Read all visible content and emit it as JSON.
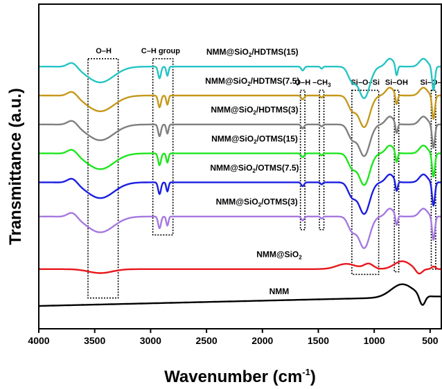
{
  "chart_data": {
    "type": "line",
    "xlabel_main": "Wavenumber (cm",
    "xlabel_sup": "-1",
    "xlabel_end": ")",
    "ylabel": "Transmittance (a.u.)",
    "xlim": [
      4000,
      400
    ],
    "x_reversed": true,
    "xticks": [
      "4000",
      "3500",
      "3000",
      "2500",
      "2000",
      "1500",
      "1000",
      "500"
    ],
    "xtick_values": [
      4000,
      3500,
      3000,
      2500,
      2000,
      1500,
      1000,
      500
    ],
    "y_ticks_shown": false,
    "annotations": [
      {
        "label": "O–H",
        "x": 3420,
        "bounds": [
          3560,
          3290
        ],
        "top": 0.94,
        "bottom": 0.03
      },
      {
        "label": "C–H group",
        "x": 2910,
        "bounds": [
          2980,
          2800
        ],
        "top": 0.94,
        "bottom": 0.27
      },
      {
        "label": "O–H",
        "x": 1640,
        "bounds": [
          1660,
          1620
        ],
        "top": 0.82,
        "bottom": 0.29
      },
      {
        "label": "–CH",
        "sub": "3",
        "x": 1470,
        "bounds": [
          1490,
          1450
        ],
        "top": 0.82,
        "bottom": 0.29
      },
      {
        "label": "Si–O–Si",
        "x": 1080,
        "bounds": [
          1200,
          960
        ],
        "top": 0.82,
        "bottom": 0.12
      },
      {
        "label": "Si–OH",
        "x": 800,
        "bounds": [
          820,
          780
        ],
        "top": 0.82,
        "bottom": 0.13
      },
      {
        "label": "Si–O–Si",
        "x": 460,
        "bounds": [
          490,
          450
        ],
        "top": 0.82,
        "bottom": 0.14
      }
    ],
    "series": [
      {
        "name_main": "NMM",
        "name_sub": "",
        "name_tail": "",
        "color": "#000000",
        "label_x": 1850,
        "offset": 0.0,
        "profile": "bare"
      },
      {
        "name_main": "NMM@SiO",
        "name_sub": "2",
        "name_tail": "",
        "color": "#e8171c",
        "label_x": 1850,
        "offset": 0.14,
        "profile": "sio2"
      },
      {
        "name_main": "NMM@SiO",
        "name_sub": "2",
        "name_tail": "/OTMS(3)",
        "color": "#a678e0",
        "label_x": 2050,
        "offset": 0.34,
        "profile": "coated"
      },
      {
        "name_main": "NMM@SiO",
        "name_sub": "2",
        "name_tail": "/OTMS(7.5)",
        "color": "#1a1ee0",
        "label_x": 2070,
        "offset": 0.47,
        "profile": "coated"
      },
      {
        "name_main": "NMM@SiO",
        "name_sub": "2",
        "name_tail": "/OTMS(15)",
        "color": "#1de61d",
        "label_x": 2070,
        "offset": 0.58,
        "profile": "coated"
      },
      {
        "name_main": "NMM@SiO",
        "name_sub": "2",
        "name_tail": "/HDTMS(3)",
        "color": "#7f7f7f",
        "label_x": 2070,
        "offset": 0.69,
        "profile": "coated"
      },
      {
        "name_main": "NMM@SiO",
        "name_sub": "2",
        "name_tail": "/HDTMS(7.5)",
        "color": "#c6981a",
        "label_x": 2090,
        "offset": 0.8,
        "profile": "coated"
      },
      {
        "name_main": "NMM@SiO",
        "name_sub": "2",
        "name_tail": "/HDTMS(15)",
        "color": "#26c4c4",
        "label_x": 2090,
        "offset": 0.91,
        "profile": "coated"
      }
    ]
  }
}
